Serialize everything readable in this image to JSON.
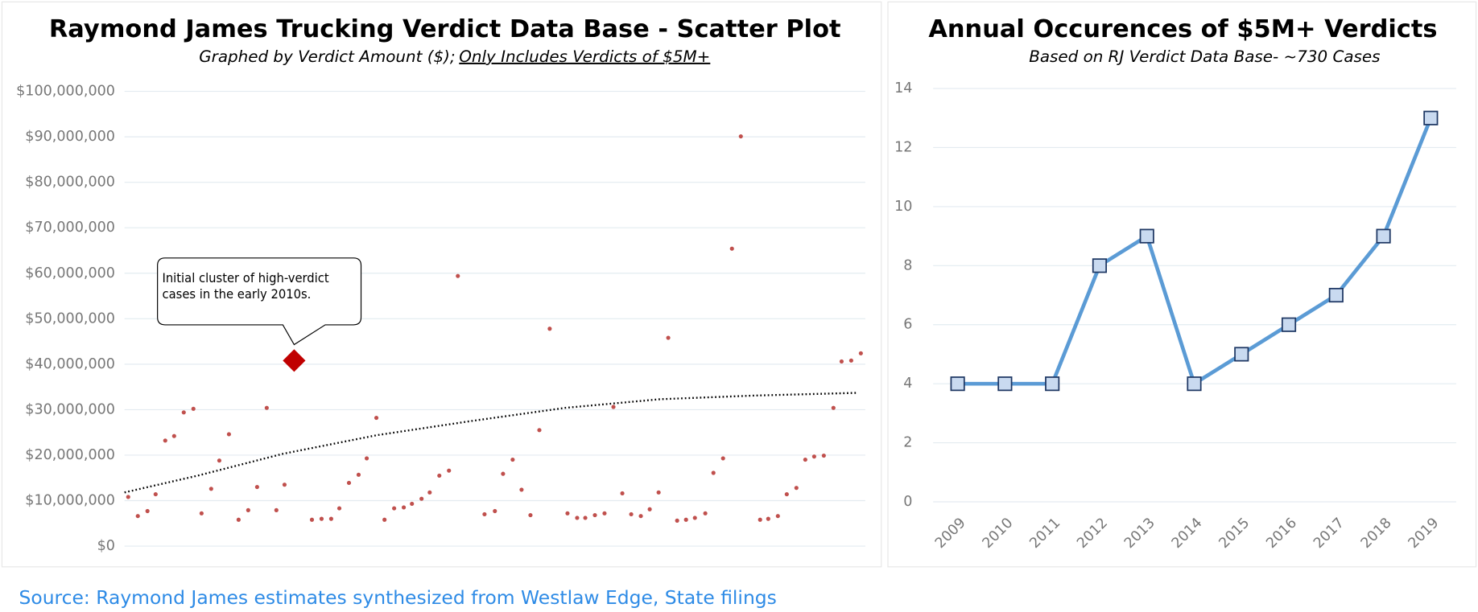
{
  "chart_data": [
    {
      "type": "scatter",
      "title": "Raymond James Trucking Verdict Data Base - Scatter Plot",
      "subtitle": "Graphed by Verdict Amount ($);",
      "subtitle_underlined": "Only Includes Verdicts of $5M+",
      "color": "#c0504d",
      "x": [
        0.5,
        1.8,
        3.1,
        4.2,
        5.5,
        6.7,
        8.0,
        9.3,
        10.4,
        11.7,
        12.8,
        14.1,
        15.4,
        16.7,
        17.9,
        19.2,
        20.5,
        21.6,
        25.3,
        26.6,
        27.9,
        29.0,
        30.3,
        31.6,
        32.7,
        34.0,
        35.1,
        36.4,
        37.7,
        38.8,
        40.1,
        41.2,
        42.5,
        43.8,
        45.0,
        48.6,
        50.0,
        51.1,
        52.4,
        53.6,
        54.8,
        56.0,
        57.4,
        59.8,
        61.1,
        62.2,
        63.5,
        64.8,
        66.0,
        67.2,
        68.4,
        69.7,
        70.9,
        72.1,
        73.4,
        74.6,
        75.8,
        77.0,
        78.4,
        79.5,
        80.8,
        82.0,
        83.2,
        85.8,
        86.9,
        88.2,
        89.4,
        90.7,
        91.9,
        93.1,
        94.4,
        95.7,
        96.8,
        98.1,
        99.4
      ],
      "values": [
        10800000,
        6600000,
        7700000,
        11400000,
        23200000,
        24200000,
        29400000,
        30200000,
        7200000,
        12600000,
        18800000,
        24600000,
        5800000,
        7900000,
        13000000,
        30400000,
        7900000,
        13500000,
        5800000,
        6000000,
        6000000,
        8300000,
        13900000,
        15700000,
        19300000,
        28200000,
        5800000,
        8300000,
        8500000,
        9300000,
        10400000,
        11800000,
        15500000,
        16600000,
        59400000,
        7000000,
        7700000,
        15900000,
        19000000,
        12400000,
        6800000,
        25500000,
        47800000,
        7200000,
        6200000,
        6200000,
        6800000,
        7200000,
        30600000,
        11600000,
        7000000,
        6600000,
        8100000,
        11800000,
        45800000,
        5600000,
        5800000,
        6200000,
        7200000,
        16100000,
        19300000,
        65400000,
        90100000,
        5800000,
        6000000,
        6600000,
        11400000,
        12800000,
        19000000,
        19700000,
        19900000,
        30400000,
        40600000,
        40800000,
        42400000
      ],
      "trendline": {
        "color": "#000000",
        "x": [
          0,
          9.9,
          21.4,
          34.1,
          46.8,
          59.5,
          72.3,
          85.0,
          99.0
        ],
        "values": [
          11800000,
          15500000,
          20300000,
          24400000,
          27500000,
          30400000,
          32300000,
          33100000,
          33700000
        ]
      },
      "annotation": {
        "text": "Initial cluster of high-verdict cases in the early 2010s.",
        "x": 22.9,
        "value": 40800000,
        "color": "#c00000"
      },
      "xlim": [
        0,
        100
      ],
      "ylim": [
        0,
        100000000
      ],
      "yticks": [
        {
          "value": 0,
          "label": "$0"
        },
        {
          "value": 10000000,
          "label": "$10,000,000"
        },
        {
          "value": 20000000,
          "label": "$20,000,000"
        },
        {
          "value": 30000000,
          "label": "$30,000,000"
        },
        {
          "value": 40000000,
          "label": "$40,000,000"
        },
        {
          "value": 50000000,
          "label": "$50,000,000"
        },
        {
          "value": 60000000,
          "label": "$60,000,000"
        },
        {
          "value": 70000000,
          "label": "$70,000,000"
        },
        {
          "value": 80000000,
          "label": "$80,000,000"
        },
        {
          "value": 90000000,
          "label": "$90,000,000"
        },
        {
          "value": 100000000,
          "label": "$100,000,000"
        }
      ],
      "grid": true
    },
    {
      "type": "line",
      "title": "Annual Occurences of $5M+ Verdicts",
      "subtitle": "Based on RJ Verdict Data Base- ~730 Cases",
      "categories": [
        "2009",
        "2010",
        "2011",
        "2012",
        "2013",
        "2014",
        "2015",
        "2016",
        "2017",
        "2018",
        "2019"
      ],
      "values": [
        4,
        4,
        4,
        8,
        9,
        4,
        5,
        6,
        7,
        9,
        13
      ],
      "color": "#5b9bd5",
      "marker_color": "#c9daf0",
      "ylim": [
        0,
        14
      ],
      "yticks": [
        0,
        2,
        4,
        6,
        8,
        10,
        12,
        14
      ],
      "grid": true
    }
  ],
  "source": "Source: Raymond James estimates synthesized from Westlaw Edge, State filings"
}
